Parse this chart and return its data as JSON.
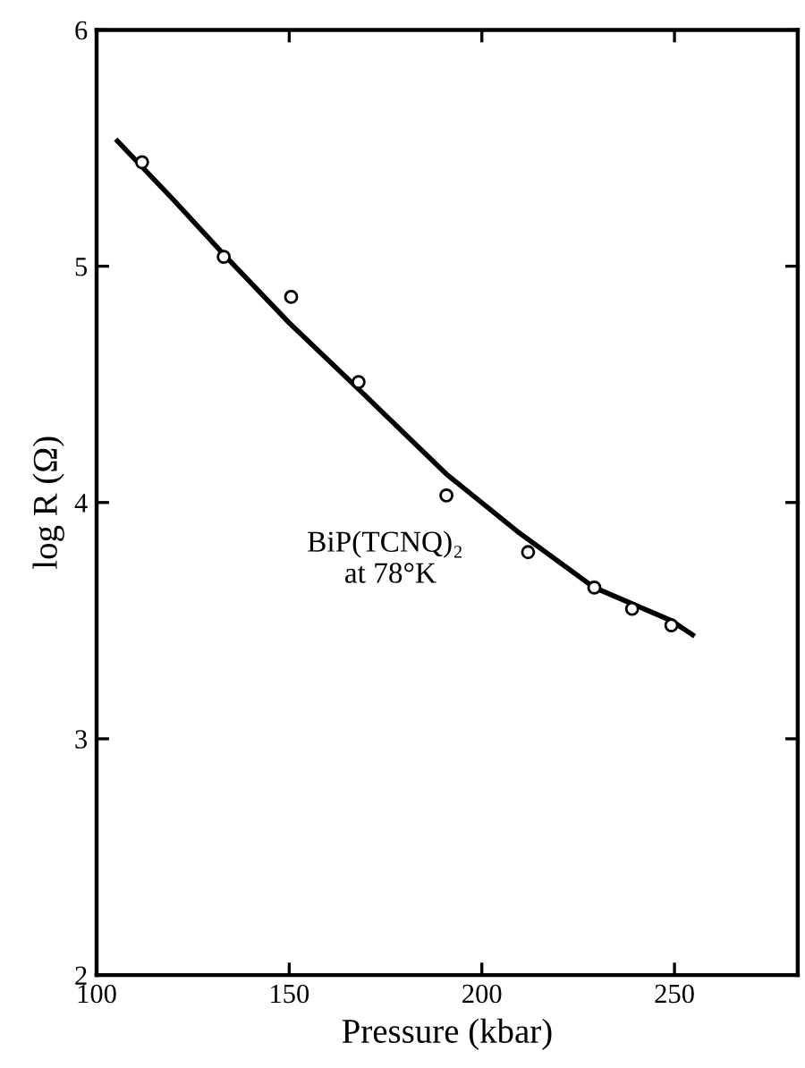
{
  "chart_data": {
    "type": "scatter",
    "xlabel": "Pressure (kbar)",
    "ylabel": "log R (Ω)",
    "xlim": [
      100,
      282
    ],
    "xticks": [
      100,
      150,
      200,
      250
    ],
    "ylim": [
      2,
      6
    ],
    "yticks": [
      2,
      3,
      4,
      5,
      6
    ],
    "grid": false,
    "legend": false,
    "marker": "circle",
    "annotations": [
      "BiP(TCNQ)₂\n     at 78°K"
    ],
    "series": [
      {
        "color": "#000000",
        "x": [
          111.8,
          133,
          150.5,
          168,
          190.8,
          212,
          229.2,
          239,
          249.2
        ],
        "values": [
          5.44,
          5.04,
          4.87,
          4.51,
          4.03,
          3.79,
          3.64,
          3.55,
          3.48
        ]
      },
      {
        "type": "line",
        "color": "#000000",
        "line_style": "solid",
        "marker": "none",
        "x": [
          105.4,
          120,
          133,
          150,
          168,
          190.8,
          209.8,
          229.2,
          249.2,
          254.7
        ],
        "values": [
          5.53,
          5.28,
          5.05,
          4.76,
          4.48,
          4.12,
          3.87,
          3.64,
          3.5,
          3.44
        ]
      }
    ]
  }
}
